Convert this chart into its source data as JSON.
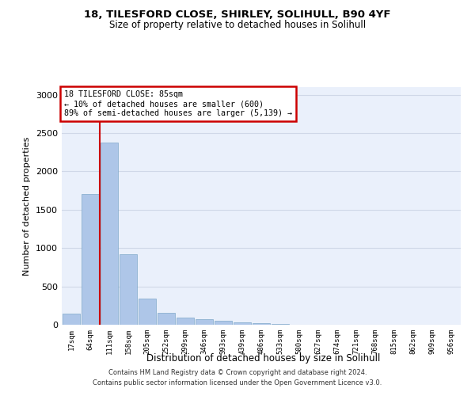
{
  "title1": "18, TILESFORD CLOSE, SHIRLEY, SOLIHULL, B90 4YF",
  "title2": "Size of property relative to detached houses in Solihull",
  "xlabel": "Distribution of detached houses by size in Solihull",
  "ylabel": "Number of detached properties",
  "footer1": "Contains HM Land Registry data © Crown copyright and database right 2024.",
  "footer2": "Contains public sector information licensed under the Open Government Licence v3.0.",
  "annotation_title": "18 TILESFORD CLOSE: 85sqm",
  "annotation_line1": "← 10% of detached houses are smaller (600)",
  "annotation_line2": "89% of semi-detached houses are larger (5,139) →",
  "bar_labels": [
    "17sqm",
    "64sqm",
    "111sqm",
    "158sqm",
    "205sqm",
    "252sqm",
    "299sqm",
    "346sqm",
    "393sqm",
    "439sqm",
    "486sqm",
    "533sqm",
    "580sqm",
    "627sqm",
    "674sqm",
    "721sqm",
    "768sqm",
    "815sqm",
    "862sqm",
    "909sqm",
    "956sqm"
  ],
  "bar_values": [
    140,
    1700,
    2380,
    920,
    340,
    160,
    90,
    70,
    50,
    30,
    20,
    10,
    5,
    3,
    2,
    0,
    0,
    0,
    0,
    0,
    0
  ],
  "bar_color": "#aec6e8",
  "bar_edge_color": "#7fa8c9",
  "property_line_x": 1.5,
  "ylim": [
    0,
    3100
  ],
  "yticks": [
    0,
    500,
    1000,
    1500,
    2000,
    2500,
    3000
  ],
  "annotation_box_color": "#cc0000",
  "red_line_color": "#cc0000",
  "grid_color": "#d0d8e8",
  "bg_color": "#eaf0fb"
}
